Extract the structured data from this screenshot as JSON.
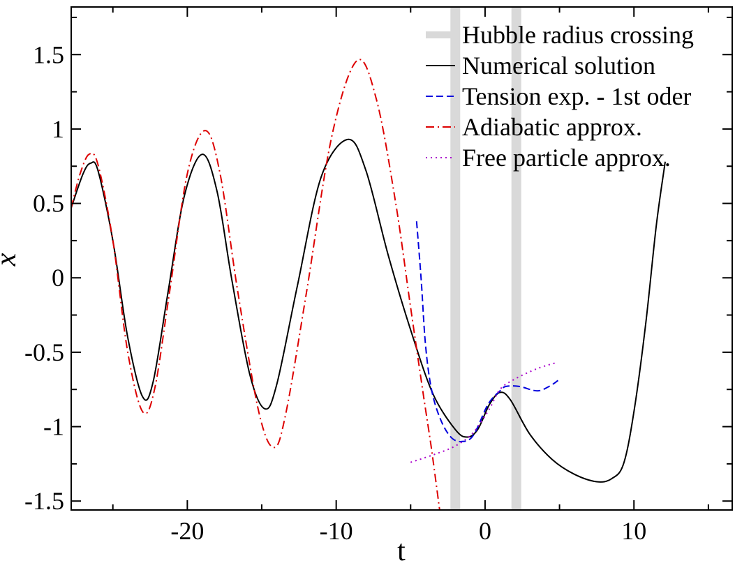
{
  "chart_data": {
    "type": "line",
    "xlabel": "t",
    "ylabel": "x",
    "xlim": [
      -27.8,
      16.6
    ],
    "ylim": [
      -1.56,
      1.82
    ],
    "x_ticks": [
      -20,
      -10,
      0,
      10
    ],
    "x_tick_labels": [
      "-20",
      "-10",
      "0",
      "10"
    ],
    "y_ticks": [
      -1.5,
      -1,
      -0.5,
      0,
      0.5,
      1,
      1.5
    ],
    "y_tick_labels": [
      "-1.5",
      "-1",
      "-0.5",
      "0",
      "0.5",
      "1",
      "1.5"
    ],
    "legend_position": "top-right",
    "bands": {
      "name": "Hubble radius crossing",
      "color": "#d9d9d9",
      "x": [
        -2.0,
        2.1
      ]
    },
    "series": [
      {
        "name": "Numerical solution",
        "color": "#000000",
        "style": "solid",
        "points": [
          [
            -27.8,
            0.47
          ],
          [
            -27.0,
            0.7
          ],
          [
            -26.5,
            0.77
          ],
          [
            -26.0,
            0.72
          ],
          [
            -25.0,
            0.25
          ],
          [
            -24.0,
            -0.4
          ],
          [
            -23.0,
            -0.8
          ],
          [
            -22.3,
            -0.7
          ],
          [
            -21.3,
            -0.1
          ],
          [
            -20.2,
            0.55
          ],
          [
            -19.0,
            0.83
          ],
          [
            -18.0,
            0.58
          ],
          [
            -17.0,
            -0.02
          ],
          [
            -15.8,
            -0.65
          ],
          [
            -14.8,
            -0.88
          ],
          [
            -14.0,
            -0.72
          ],
          [
            -12.6,
            -0.05
          ],
          [
            -11.0,
            0.68
          ],
          [
            -9.2,
            0.93
          ],
          [
            -8.0,
            0.72
          ],
          [
            -6.5,
            0.15
          ],
          [
            -5.0,
            -0.35
          ],
          [
            -3.5,
            -0.78
          ],
          [
            -2.0,
            -1.02
          ],
          [
            -1.2,
            -1.07
          ],
          [
            -0.5,
            -1.02
          ],
          [
            0.3,
            -0.85
          ],
          [
            1.0,
            -0.77
          ],
          [
            1.7,
            -0.82
          ],
          [
            3.0,
            -1.05
          ],
          [
            4.5,
            -1.22
          ],
          [
            6.0,
            -1.32
          ],
          [
            7.5,
            -1.37
          ],
          [
            8.5,
            -1.35
          ],
          [
            9.3,
            -1.25
          ],
          [
            10.0,
            -0.9
          ],
          [
            10.8,
            -0.3
          ],
          [
            11.5,
            0.35
          ],
          [
            12.1,
            0.78
          ]
        ]
      },
      {
        "name": "Tension exp. - 1st oder",
        "color": "#0000dd",
        "style": "dashed",
        "points": [
          [
            -4.6,
            0.38
          ],
          [
            -4.3,
            0.0
          ],
          [
            -4.0,
            -0.45
          ],
          [
            -3.6,
            -0.75
          ],
          [
            -3.0,
            -0.95
          ],
          [
            -2.3,
            -1.07
          ],
          [
            -1.6,
            -1.1
          ],
          [
            -0.8,
            -1.06
          ],
          [
            0.2,
            -0.85
          ],
          [
            1.0,
            -0.76
          ],
          [
            1.4,
            -0.73
          ],
          [
            2.3,
            -0.73
          ],
          [
            3.5,
            -0.76
          ],
          [
            4.3,
            -0.73
          ],
          [
            4.9,
            -0.69
          ]
        ]
      },
      {
        "name": "Adiabatic approx.",
        "color": "#dd0000",
        "style": "dashdot",
        "points": [
          [
            -27.8,
            0.47
          ],
          [
            -27.2,
            0.7
          ],
          [
            -26.6,
            0.83
          ],
          [
            -26.0,
            0.76
          ],
          [
            -25.0,
            0.25
          ],
          [
            -24.0,
            -0.5
          ],
          [
            -23.0,
            -0.9
          ],
          [
            -22.2,
            -0.75
          ],
          [
            -21.2,
            -0.1
          ],
          [
            -20.0,
            0.7
          ],
          [
            -18.8,
            0.99
          ],
          [
            -17.8,
            0.7
          ],
          [
            -16.6,
            -0.1
          ],
          [
            -15.2,
            -0.9
          ],
          [
            -14.2,
            -1.14
          ],
          [
            -13.4,
            -0.92
          ],
          [
            -12.0,
            -0.1
          ],
          [
            -10.3,
            0.95
          ],
          [
            -8.6,
            1.46
          ],
          [
            -7.3,
            1.2
          ],
          [
            -6.0,
            0.5
          ],
          [
            -5.0,
            -0.2
          ],
          [
            -4.2,
            -0.75
          ],
          [
            -3.6,
            -1.15
          ],
          [
            -3.0,
            -1.6
          ]
        ]
      },
      {
        "name": "Free particle approx.",
        "color": "#aa00cc",
        "style": "dotted",
        "points": [
          [
            -5.0,
            -1.24
          ],
          [
            -3.5,
            -1.19
          ],
          [
            -2.0,
            -1.13
          ],
          [
            -0.8,
            -1.04
          ],
          [
            0.3,
            -0.88
          ],
          [
            1.0,
            -0.75
          ],
          [
            2.0,
            -0.68
          ],
          [
            3.5,
            -0.61
          ],
          [
            4.8,
            -0.57
          ]
        ]
      }
    ]
  }
}
